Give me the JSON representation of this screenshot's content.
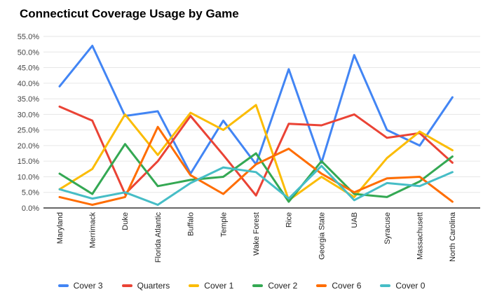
{
  "title": "Connecticut Coverage Usage by Game",
  "chart_data": {
    "type": "line",
    "title": "Connecticut Coverage Usage by Game",
    "xlabel": "",
    "ylabel": "",
    "ylim": [
      0,
      55
    ],
    "ytick_step": 5,
    "ytick_format": "one_decimal_percent",
    "grid": true,
    "legend_position": "bottom",
    "background_color": "#ffffff",
    "gridline_color": "#e6e6e6",
    "baseline_color": "#333333",
    "axis_text_color": "#444444",
    "categories": [
      "Maryland",
      "Merrimack",
      "Duke",
      "Florida Atlantic",
      "Buffalo",
      "Temple",
      "Wake Forest",
      "Rice",
      "Georgia State",
      "UAB",
      "Syracuse",
      "Massachusett",
      "North Carolina"
    ],
    "series": [
      {
        "name": "Cover 3",
        "color": "#4285f4",
        "values": [
          39,
          52,
          29.5,
          31,
          11,
          28,
          14,
          44.5,
          14.5,
          49,
          25,
          20,
          35.5
        ]
      },
      {
        "name": "Quarters",
        "color": "#ea4335",
        "values": [
          32.5,
          28,
          4.5,
          15,
          29.5,
          17,
          4,
          27,
          26.5,
          30,
          22.5,
          24,
          14.5
        ]
      },
      {
        "name": "Cover 1",
        "color": "#fbbc04",
        "values": [
          6,
          12.5,
          30,
          17,
          30.5,
          25,
          33,
          2.5,
          10,
          3.5,
          16,
          24.5,
          18.5
        ]
      },
      {
        "name": "Cover 2",
        "color": "#34a853",
        "values": [
          11,
          4.5,
          20.5,
          7,
          9,
          10,
          17.5,
          2,
          15,
          4.5,
          3.5,
          8.5,
          16.5
        ]
      },
      {
        "name": "Cover 6",
        "color": "#ff6d01",
        "values": [
          3.5,
          1,
          3.5,
          26,
          10.5,
          4.5,
          14,
          19,
          11,
          5,
          9.5,
          10,
          2
        ]
      },
      {
        "name": "Cover 0",
        "color": "#46bdc6",
        "values": [
          6,
          3,
          5,
          1,
          8,
          13,
          11.5,
          3,
          13.5,
          2.5,
          8,
          7,
          11.5
        ]
      }
    ]
  }
}
